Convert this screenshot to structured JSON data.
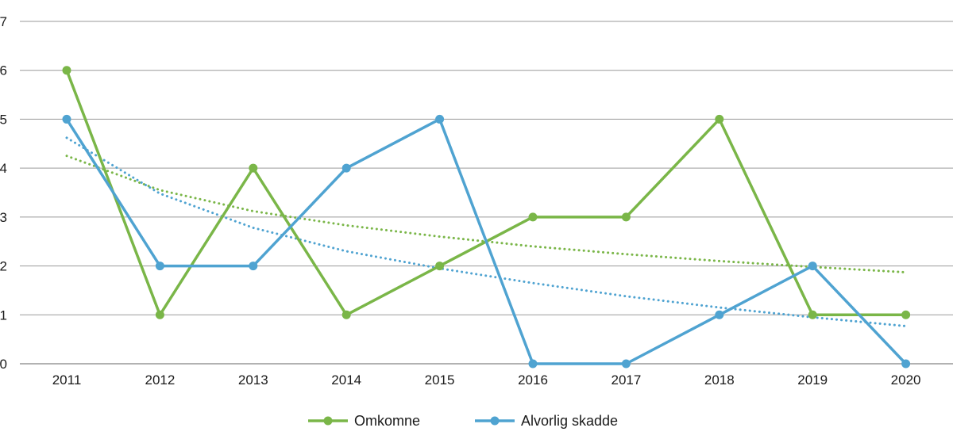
{
  "chart_data": {
    "type": "line",
    "title": "",
    "xlabel": "",
    "ylabel": "",
    "x": [
      "2011",
      "2012",
      "2013",
      "2014",
      "2015",
      "2016",
      "2017",
      "2018",
      "2019",
      "2020"
    ],
    "ylim": [
      0,
      7
    ],
    "yticks": [
      "0",
      "1",
      "2",
      "3",
      "4",
      "5",
      "6",
      "7"
    ],
    "grid": "horizontal",
    "legend_position": "bottom",
    "series": [
      {
        "name": "Omkomne",
        "color": "#7ab648",
        "values": [
          6,
          1,
          4,
          1,
          2,
          3,
          3,
          5,
          1,
          1
        ],
        "trend": [
          4.25,
          3.55,
          3.12,
          2.83,
          2.6,
          2.4,
          2.24,
          2.1,
          1.98,
          1.87
        ]
      },
      {
        "name": "Alvorlig skadde",
        "color": "#4fa3d1",
        "values": [
          5,
          2,
          2,
          4,
          5,
          0,
          0,
          1,
          2,
          0
        ],
        "trend": [
          4.62,
          3.48,
          2.78,
          2.3,
          1.95,
          1.65,
          1.38,
          1.15,
          0.95,
          0.77
        ]
      }
    ]
  }
}
